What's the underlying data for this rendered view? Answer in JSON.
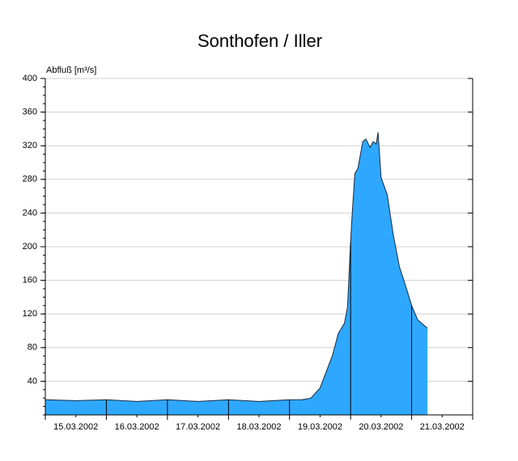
{
  "chart_data": {
    "type": "area",
    "title": "Sonthofen / Iller",
    "y_label": "Abfluß [m³/s]",
    "series": [
      {
        "color": "#2ea8ff",
        "x": [
          0,
          0.5,
          1,
          1.5,
          2,
          2.5,
          3,
          3.5,
          4,
          4.2,
          4.35,
          4.5,
          4.6,
          4.7,
          4.8,
          4.9,
          4.95,
          5,
          5.03,
          5.07,
          5.12,
          5.2,
          5.25,
          5.32,
          5.37,
          5.42,
          5.45,
          5.5,
          5.6,
          5.7,
          5.8,
          5.9,
          6,
          6.1,
          6.26
        ],
        "values": [
          18,
          17,
          18,
          16,
          18,
          16,
          18,
          16,
          18,
          18,
          20,
          32,
          51,
          70,
          97,
          109,
          128,
          205,
          243,
          287,
          293,
          325,
          328,
          318,
          325,
          322,
          336,
          282,
          262,
          214,
          176,
          154,
          130,
          113,
          103
        ]
      }
    ],
    "xlim": [
      0,
      7
    ],
    "xticks": [
      {
        "value": 0.5,
        "label": "15.03.2002"
      },
      {
        "value": 1.5,
        "label": "16.03.2002"
      },
      {
        "value": 2.5,
        "label": "17.03.2002"
      },
      {
        "value": 3.5,
        "label": "18.03.2002"
      },
      {
        "value": 4.5,
        "label": "19.03.2002"
      },
      {
        "value": 5.5,
        "label": "20.03.2002"
      },
      {
        "value": 6.5,
        "label": "21.03.2002"
      }
    ],
    "ylim": [
      0,
      400
    ],
    "yticks": [
      40,
      80,
      120,
      160,
      200,
      240,
      280,
      320,
      360,
      400
    ],
    "grid": true
  }
}
